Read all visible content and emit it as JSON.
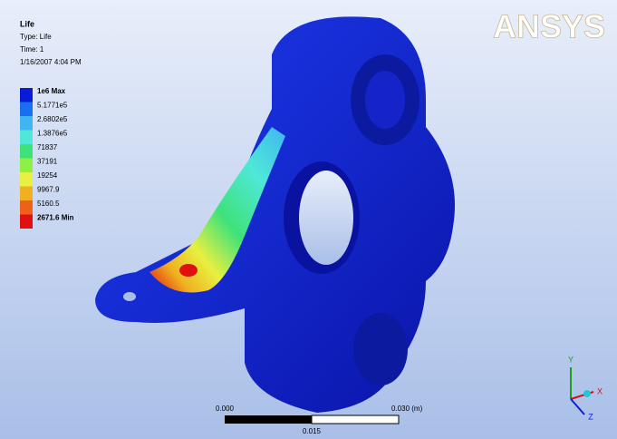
{
  "header": {
    "title": "Life",
    "type": "Type: Life",
    "time": "Time: 1",
    "date": "1/16/2007 4:04 PM"
  },
  "logo": "ANSYS",
  "legend": [
    {
      "label": "1e6 Max",
      "color": "#0a1ad8"
    },
    {
      "label": "5.1771e5",
      "color": "#1a6ef0"
    },
    {
      "label": "2.6802e5",
      "color": "#3fb6f2"
    },
    {
      "label": "1.3876e5",
      "color": "#4fe8d8"
    },
    {
      "label": "71837",
      "color": "#3ee27a"
    },
    {
      "label": "37191",
      "color": "#8ef040"
    },
    {
      "label": "19254",
      "color": "#e8f040"
    },
    {
      "label": "9967.9",
      "color": "#f0b020"
    },
    {
      "label": "5160.5",
      "color": "#f06018"
    },
    {
      "label": "2671.6 Min",
      "color": "#e01010"
    }
  ],
  "scale_bar": {
    "start": "0.000",
    "end": "0.030 (m)",
    "mid": "0.015"
  },
  "triad": {
    "y": "Y",
    "x": "X",
    "z": "Z"
  }
}
